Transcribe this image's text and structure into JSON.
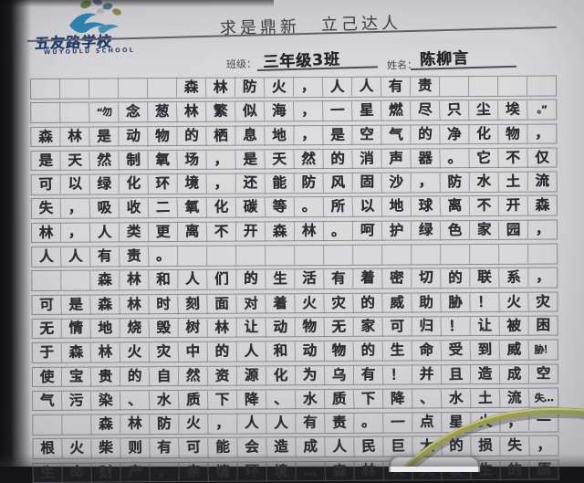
{
  "school": {
    "name_cn": "五友路学校",
    "name_en": "WUYOULU SCHOOL"
  },
  "header": {
    "motto_left": "求是鼎新",
    "motto_right": "立己达人"
  },
  "student": {
    "class_label": "班级：",
    "class_value": "三年级3班",
    "name_label": "姓名：",
    "name_value": "陈柳言"
  },
  "essay": {
    "title": "森林防火，人人有责",
    "rows": [
      [
        "",
        "",
        "",
        "",
        "",
        "森",
        "林",
        "防",
        "火",
        "，",
        "人",
        "人",
        "有",
        "责",
        "",
        "",
        "",
        ""
      ],
      [
        "",
        "",
        "“勿",
        "念",
        "葱",
        "林",
        "繁",
        "似",
        "海",
        "，",
        "一",
        "星",
        "燃",
        "尽",
        "只",
        "尘",
        "埃",
        "。”"
      ],
      [
        "森",
        "林",
        "是",
        "动",
        "物",
        "的",
        "栖",
        "息",
        "地",
        "，",
        "是",
        "空",
        "气",
        "的",
        "净",
        "化",
        "物",
        "，"
      ],
      [
        "是",
        "天",
        "然",
        "制",
        "氧",
        "场",
        "，",
        "是",
        "天",
        "然",
        "的",
        "消",
        "声",
        "器",
        "。",
        "它",
        "不",
        "仅"
      ],
      [
        "可",
        "以",
        "绿",
        "化",
        "环",
        "境",
        "，",
        "还",
        "能",
        "防",
        "风",
        "固",
        "沙",
        "，",
        "防",
        "水",
        "土",
        "流"
      ],
      [
        "失",
        "，",
        "吸",
        "收",
        "二",
        "氧",
        "化",
        "碳",
        "等",
        "。",
        "所",
        "以",
        "地",
        "球",
        "离",
        "不",
        "开",
        "森"
      ],
      [
        "林",
        "，",
        "人",
        "类",
        "更",
        "离",
        "不",
        "开",
        "森",
        "林",
        "。",
        "呵",
        "护",
        "绿",
        "色",
        "家",
        "园",
        "，"
      ],
      [
        "人",
        "人",
        "有",
        "责",
        "。",
        "",
        "",
        "",
        "",
        "",
        "",
        "",
        "",
        "",
        "",
        "",
        "",
        ""
      ],
      [
        "",
        "",
        "森",
        "林",
        "和",
        "人",
        "们",
        "的",
        "生",
        "活",
        "有",
        "着",
        "密",
        "切",
        "的",
        "联",
        "系",
        "，"
      ],
      [
        "可",
        "是",
        "森",
        "林",
        "时",
        "刻",
        "面",
        "对",
        "着",
        "火",
        "灾",
        "的",
        "威",
        "助",
        "胁",
        "！",
        "火",
        "灾"
      ],
      [
        "无",
        "情",
        "地",
        "烧",
        "毁",
        "树",
        "林",
        "让",
        "动",
        "物",
        "无",
        "家",
        "可",
        "归",
        "！",
        "让",
        "被",
        "困"
      ],
      [
        "于",
        "森",
        "林",
        "火",
        "灾",
        "中",
        "的",
        "人",
        "和",
        "动",
        "物",
        "的",
        "生",
        "命",
        "受",
        "到",
        "威",
        "胁！"
      ],
      [
        "使",
        "宝",
        "贵",
        "的",
        "自",
        "然",
        "资",
        "源",
        "化",
        "为",
        "乌",
        "有",
        "！",
        "并",
        "且",
        "造",
        "成",
        "空"
      ],
      [
        "气",
        "污",
        "染",
        "、",
        "水",
        "质",
        "下",
        "降",
        "、",
        "水",
        "质",
        "下",
        "降",
        "、",
        "水",
        "土",
        "流",
        "失…"
      ],
      [
        "",
        "",
        "森",
        "林",
        "防",
        "火",
        "，",
        "人",
        "人",
        "有",
        "责",
        "。",
        "一",
        "点",
        "星",
        "火",
        "，",
        "一"
      ],
      [
        "根",
        "火",
        "柴",
        "则",
        "有",
        "可",
        "能",
        "会",
        "造",
        "成",
        "人",
        "民",
        "巨",
        "大",
        "的",
        "损",
        "失",
        "，"
      ],
      [
        "生",
        "命",
        "财",
        "产",
        "，",
        "亲",
        "情",
        "环",
        "境",
        "…",
        "森",
        "林",
        "火",
        "灾",
        "发",
        "生",
        "的",
        "原"
      ]
    ]
  },
  "colors": {
    "paper": "#d5d4d7",
    "ink": "#2d2d34",
    "grid_line": "#62626c",
    "logo_navy": "#233d6b",
    "logo_blue": "#2e86b5",
    "cord_olive": "#9f9f52"
  }
}
